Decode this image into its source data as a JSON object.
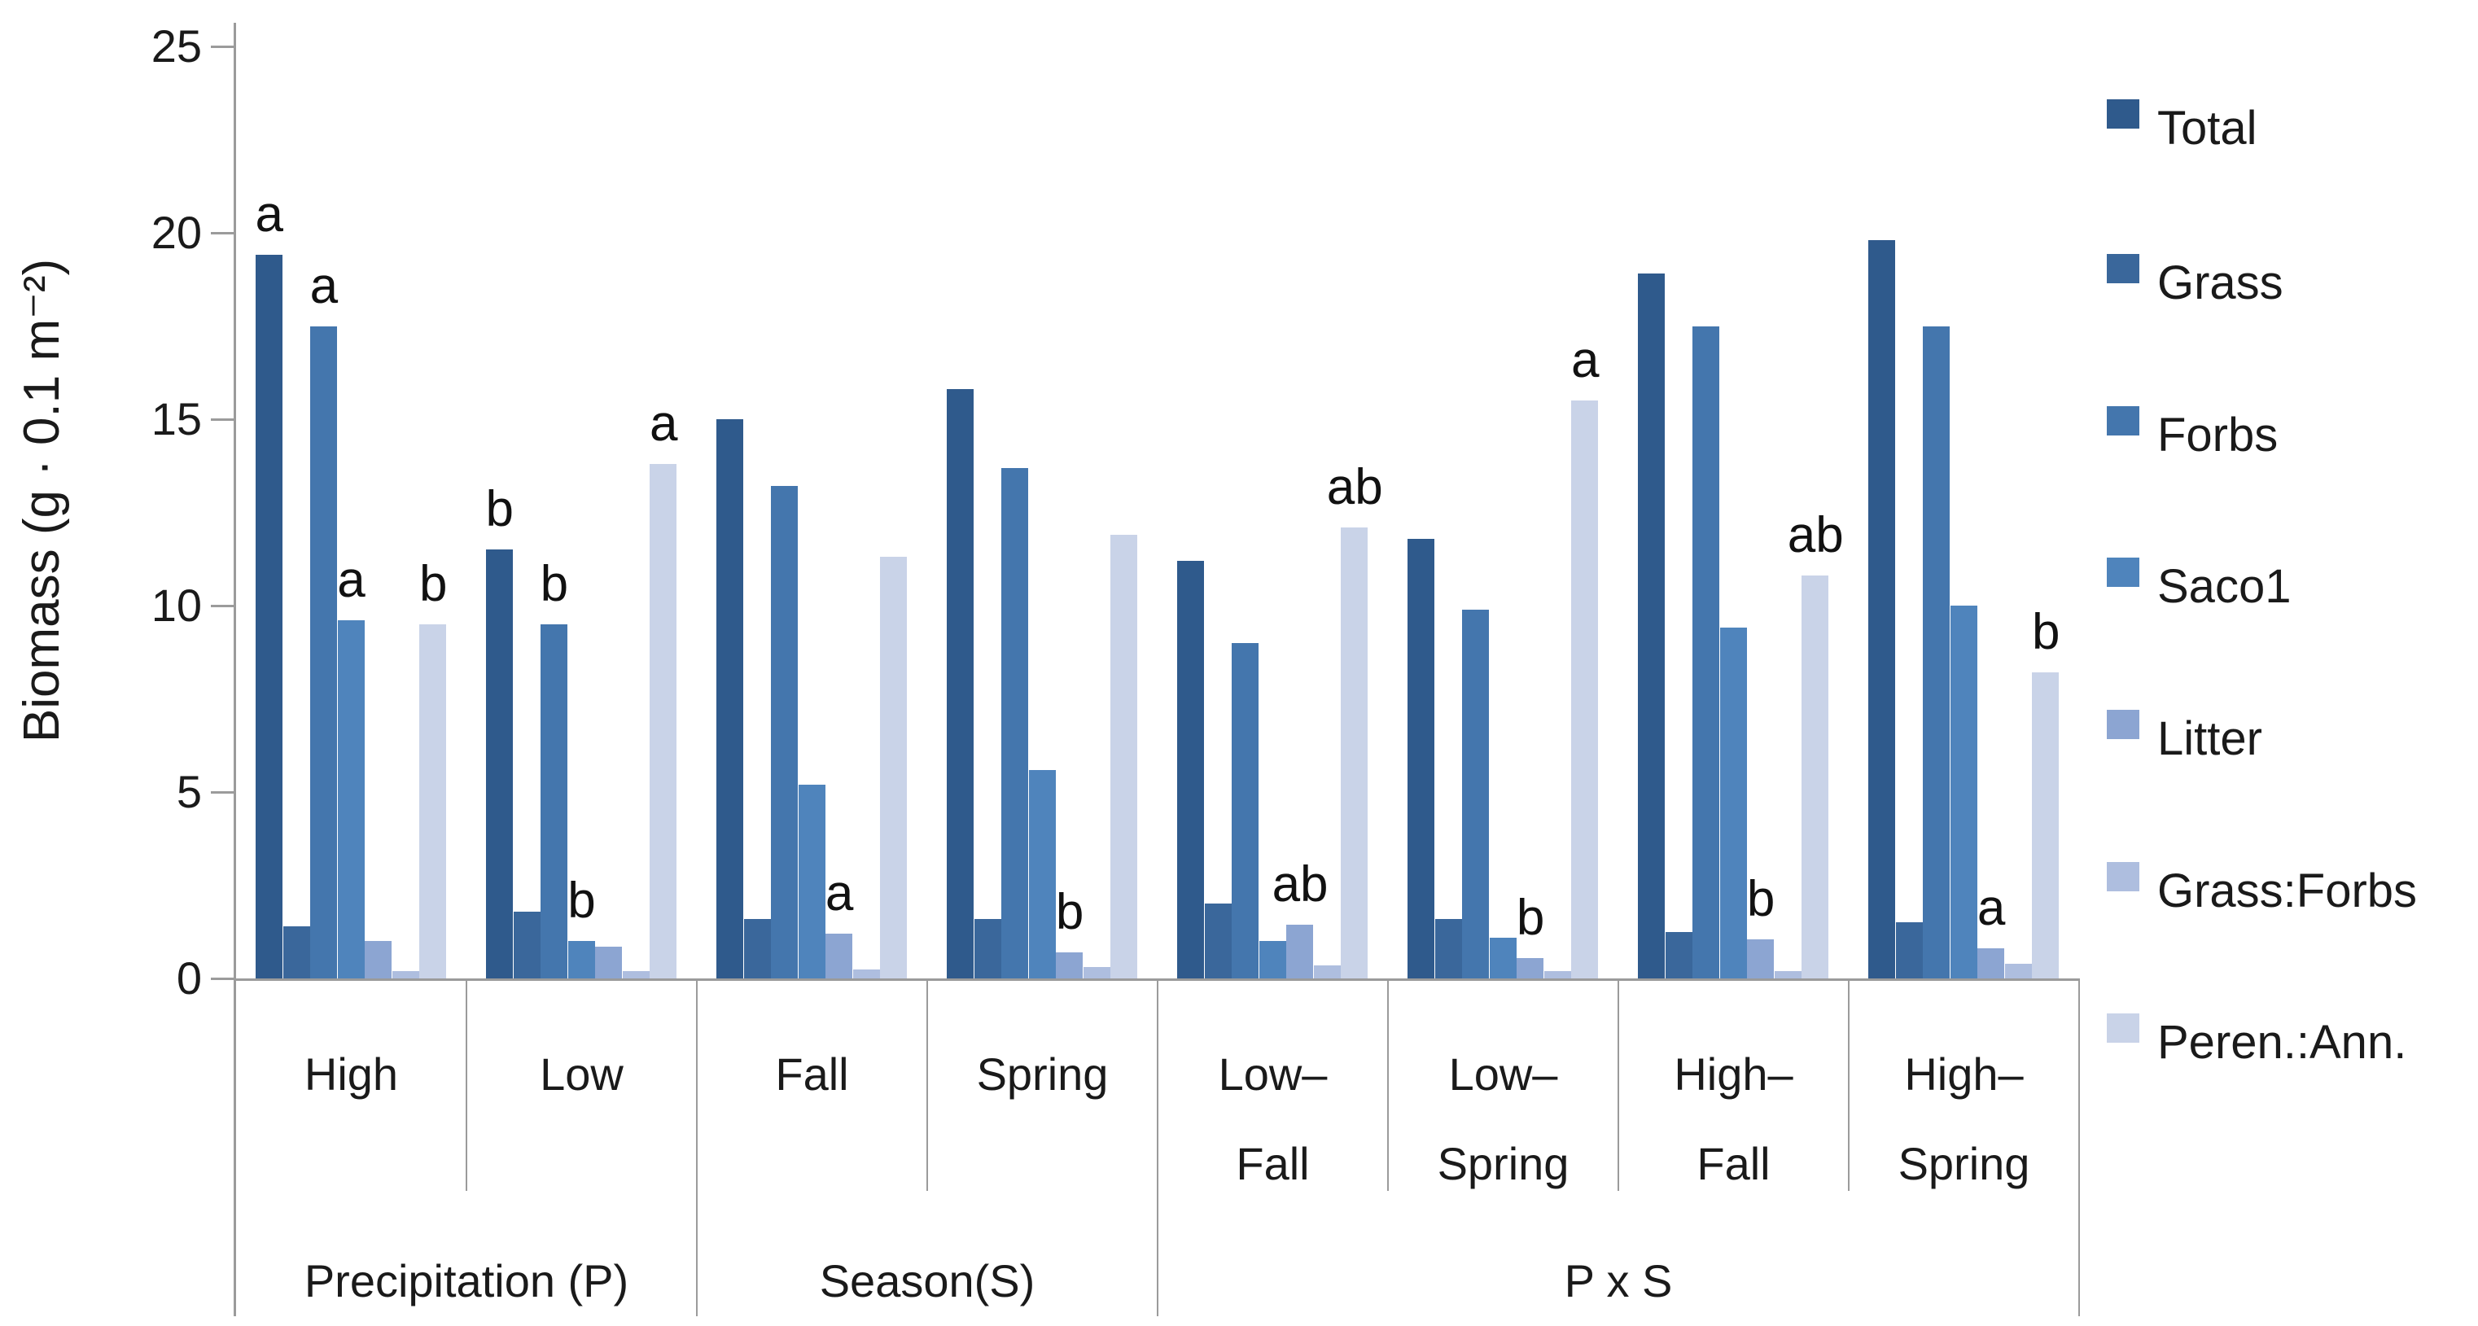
{
  "chart_data": {
    "type": "bar",
    "title": "",
    "ylabel": "Biomass (g · 0.1 m⁻²)",
    "xlabel": "",
    "ylim": [
      0,
      25
    ],
    "yticks": [
      "0",
      "5",
      "10",
      "15",
      "20",
      "25"
    ],
    "grid": false,
    "legend_position": "right",
    "categories": [
      {
        "lines": [
          "High"
        ],
        "group": "Precipitation (P)"
      },
      {
        "lines": [
          "Low"
        ],
        "group": "Precipitation (P)"
      },
      {
        "lines": [
          "Fall"
        ],
        "group": "Season(S)"
      },
      {
        "lines": [
          "Spring"
        ],
        "group": "Season(S)"
      },
      {
        "lines": [
          "Low–",
          "Fall"
        ],
        "group": "P x S"
      },
      {
        "lines": [
          "Low–",
          "Spring"
        ],
        "group": "P x S"
      },
      {
        "lines": [
          "High–",
          "Fall"
        ],
        "group": "P x S"
      },
      {
        "lines": [
          "High–",
          "Spring"
        ],
        "group": "P x S"
      }
    ],
    "category_groups": [
      {
        "label": "Precipitation (P)",
        "start": 0,
        "end": 2
      },
      {
        "label": "Season(S)",
        "start": 2,
        "end": 4
      },
      {
        "label": "P x S",
        "start": 4,
        "end": 8
      }
    ],
    "series": [
      {
        "name": "Total",
        "color": "#2f5a8c",
        "values": [
          19.4,
          11.5,
          15.0,
          15.8,
          11.2,
          11.8,
          18.9,
          19.8
        ]
      },
      {
        "name": "Grass",
        "color": "#3a679b",
        "values": [
          1.4,
          1.8,
          1.6,
          1.6,
          2.0,
          1.6,
          1.25,
          1.5
        ]
      },
      {
        "name": "Forbs",
        "color": "#4476ad",
        "values": [
          17.5,
          9.5,
          13.2,
          13.7,
          9.0,
          9.9,
          17.5,
          17.5
        ]
      },
      {
        "name": "Saco1",
        "color": "#4f84bc",
        "values": [
          9.6,
          1.0,
          5.2,
          5.6,
          1.0,
          1.1,
          9.4,
          10.0
        ]
      },
      {
        "name": "Litter",
        "color": "#8ca5d2",
        "values": [
          1.0,
          0.85,
          1.2,
          0.7,
          1.45,
          0.55,
          1.05,
          0.8
        ]
      },
      {
        "name": "Grass:Forbs",
        "color": "#aebedf",
        "values": [
          0.2,
          0.2,
          0.25,
          0.3,
          0.35,
          0.2,
          0.2,
          0.4
        ]
      },
      {
        "name": "Peren.:Ann.",
        "color": "#c9d3e8",
        "values": [
          9.5,
          13.8,
          11.3,
          11.9,
          12.1,
          15.5,
          10.8,
          8.2
        ]
      }
    ],
    "annotations": [
      {
        "category": 0,
        "series": "Total",
        "letter": "a"
      },
      {
        "category": 0,
        "series": "Forbs",
        "letter": "a"
      },
      {
        "category": 0,
        "series": "Saco1",
        "letter": "a"
      },
      {
        "category": 0,
        "series": "Peren.:Ann.",
        "letter": "b"
      },
      {
        "category": 1,
        "series": "Total",
        "letter": "b"
      },
      {
        "category": 1,
        "series": "Forbs",
        "letter": "b"
      },
      {
        "category": 1,
        "series": "Saco1",
        "letter": "b"
      },
      {
        "category": 1,
        "series": "Peren.:Ann.",
        "letter": "a"
      },
      {
        "category": 2,
        "series": "Litter",
        "letter": "a"
      },
      {
        "category": 3,
        "series": "Litter",
        "letter": "b"
      },
      {
        "category": 4,
        "series": "Litter",
        "letter": "ab"
      },
      {
        "category": 4,
        "series": "Peren.:Ann.",
        "letter": "ab"
      },
      {
        "category": 5,
        "series": "Litter",
        "letter": "b"
      },
      {
        "category": 5,
        "series": "Peren.:Ann.",
        "letter": "a"
      },
      {
        "category": 6,
        "series": "Litter",
        "letter": "b"
      },
      {
        "category": 6,
        "series": "Peren.:Ann.",
        "letter": "ab"
      },
      {
        "category": 7,
        "series": "Litter",
        "letter": "a"
      },
      {
        "category": 7,
        "series": "Peren.:Ann.",
        "letter": "b"
      }
    ]
  }
}
